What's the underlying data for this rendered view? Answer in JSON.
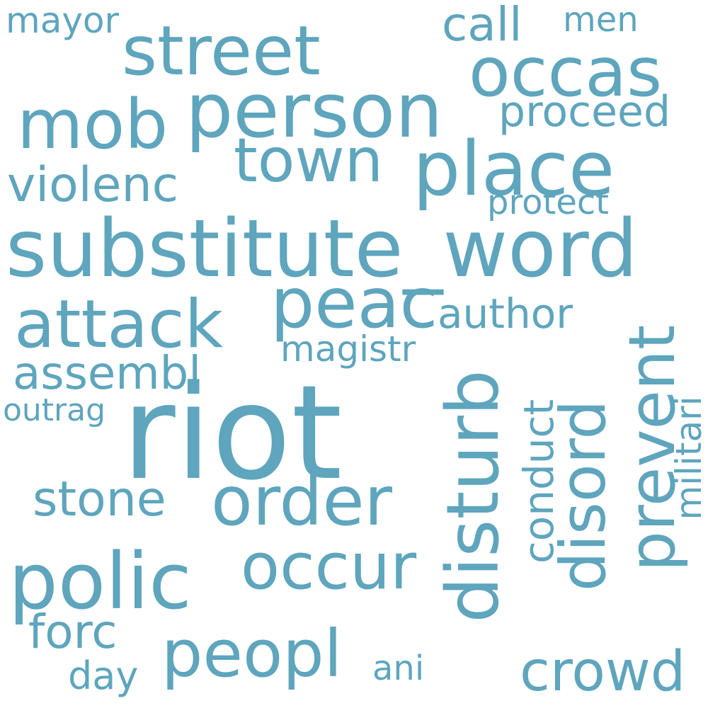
{
  "color": "#5ea5bd",
  "words": [
    "mayor",
    "street",
    "call",
    "men",
    "occas",
    "person",
    "mob",
    "proceed",
    "town",
    "place",
    "violenc",
    "protect",
    "substitute_word",
    "peac",
    "attack",
    "author",
    "disturb",
    "prevent",
    "magistr",
    "militari",
    "assembl",
    "conduct",
    "disord",
    "outrag",
    "riot",
    "stone",
    "order",
    "polic",
    "occur",
    "forc",
    "peopl",
    "crowd",
    "ani",
    "day"
  ]
}
